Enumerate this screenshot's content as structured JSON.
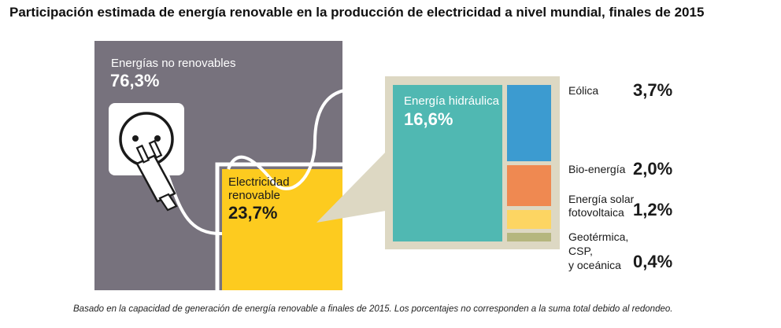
{
  "title": "Participación estimada de energía renovable en la producción de electricidad a nivel mundial, finales de 2015",
  "footnote": "Basado en la capacidad de generación de energía renovable a finales de 2015. Los porcentajes no corresponden a la suma total debido al redondeo.",
  "colors": {
    "non_renewable": "#77727d",
    "renewable": "#fdcb1f",
    "callout_bg": "#ddd8c3",
    "hydro": "#50b8b2",
    "wind": "#3c9bd0",
    "bio": "#ef8951",
    "solar": "#fdd562",
    "geo": "#b5b67e"
  },
  "chart_data": {
    "type": "treemap",
    "title": "Participación estimada de energía renovable en la producción de electricidad a nivel mundial, finales de 2015",
    "total": {
      "label": "Energías no renovables",
      "value_text": "76,3%",
      "value": 76.3
    },
    "renewable": {
      "label_line1": "Electricidad",
      "label_line2": "renovable",
      "value_text": "23,7%",
      "value": 23.7
    },
    "breakdown": [
      {
        "key": "hydro",
        "label": "Energía hidráulica",
        "value_text": "16,6%",
        "value": 16.6
      },
      {
        "key": "wind",
        "label": "Eólica",
        "value_text": "3,7%",
        "value": 3.7
      },
      {
        "key": "bio",
        "label": "Bio-energía",
        "value_text": "2,0%",
        "value": 2.0
      },
      {
        "key": "solar",
        "label_line1": "Energía solar",
        "label_line2": "fotovoltaica",
        "value_text": "1,2%",
        "value": 1.2
      },
      {
        "key": "geo",
        "label_line1": "Geotérmica,",
        "label_line2": "CSP,",
        "label_line3": "y oceánica",
        "value_text": "0,4%",
        "value": 0.4
      }
    ]
  }
}
